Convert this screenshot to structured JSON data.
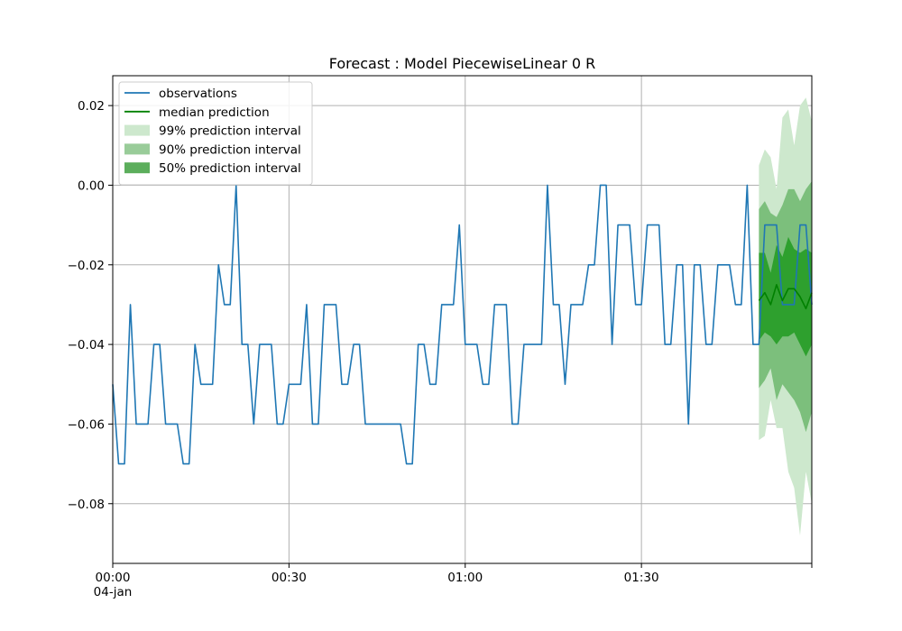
{
  "chart_data": {
    "type": "line",
    "title": "Forecast : Model PiecewiseLinear 0 R",
    "xlabel": "",
    "ylabel": "",
    "x_unit": "minutes",
    "xlim": [
      0,
      119
    ],
    "ylim": [
      -0.095,
      0.0275
    ],
    "grid": true,
    "legend_position": "top-left",
    "x_ticks": [
      {
        "value": 0,
        "label": "00:00",
        "sublabel": "04-jan"
      },
      {
        "value": 30,
        "label": "00:30",
        "sublabel": ""
      },
      {
        "value": 60,
        "label": "01:00",
        "sublabel": ""
      },
      {
        "value": 90,
        "label": "01:30",
        "sublabel": ""
      },
      {
        "value": 119,
        "label": "",
        "sublabel": ""
      }
    ],
    "y_ticks": [
      {
        "value": 0.02,
        "label": "0.02"
      },
      {
        "value": 0.0,
        "label": "0.00"
      },
      {
        "value": -0.02,
        "label": "−0.02"
      },
      {
        "value": -0.04,
        "label": "−0.04"
      },
      {
        "value": -0.06,
        "label": "−0.06"
      },
      {
        "value": -0.08,
        "label": "−0.08"
      }
    ],
    "colors": {
      "observations": "#1f77b4",
      "median": "#008000",
      "band99": "#cde8cd",
      "band90": "#7cbf7c",
      "band50": "#2ea02e",
      "grid": "#b0b0b0"
    },
    "legend": [
      {
        "label": "observations",
        "kind": "line",
        "color": "#1f77b4"
      },
      {
        "label": "median prediction",
        "kind": "line",
        "color": "#008000"
      },
      {
        "label": "99% prediction interval",
        "kind": "patch",
        "color": "#cde8cd"
      },
      {
        "label": "90% prediction interval",
        "kind": "patch",
        "color": "#99cc99"
      },
      {
        "label": "50% prediction interval",
        "kind": "patch",
        "color": "#5cae5c"
      }
    ],
    "series": [
      {
        "name": "observations",
        "x": [
          0,
          1,
          2,
          3,
          4,
          5,
          6,
          7,
          8,
          9,
          10,
          11,
          12,
          13,
          14,
          15,
          16,
          17,
          18,
          19,
          20,
          21,
          22,
          23,
          24,
          25,
          26,
          27,
          28,
          29,
          30,
          31,
          32,
          33,
          34,
          35,
          36,
          37,
          38,
          39,
          40,
          41,
          42,
          43,
          44,
          45,
          46,
          47,
          48,
          49,
          50,
          51,
          52,
          53,
          54,
          55,
          56,
          57,
          58,
          59,
          60,
          61,
          62,
          63,
          64,
          65,
          66,
          67,
          68,
          69,
          70,
          71,
          72,
          73,
          74,
          75,
          76,
          77,
          78,
          79,
          80,
          81,
          82,
          83,
          84,
          85,
          86,
          87,
          88,
          89,
          90,
          91,
          92,
          93,
          94,
          95,
          96,
          97,
          98,
          99,
          100,
          101,
          102,
          103,
          104,
          105,
          106,
          107,
          108,
          109,
          110,
          111,
          112,
          113,
          114,
          115,
          116,
          117,
          118,
          119
        ],
        "y": [
          -0.05,
          -0.07,
          -0.07,
          -0.03,
          -0.06,
          -0.06,
          -0.06,
          -0.04,
          -0.04,
          -0.06,
          -0.06,
          -0.06,
          -0.07,
          -0.07,
          -0.04,
          -0.05,
          -0.05,
          -0.05,
          -0.02,
          -0.03,
          -0.03,
          0.0,
          -0.04,
          -0.04,
          -0.06,
          -0.04,
          -0.04,
          -0.04,
          -0.06,
          -0.06,
          -0.05,
          -0.05,
          -0.05,
          -0.03,
          -0.06,
          -0.06,
          -0.03,
          -0.03,
          -0.03,
          -0.05,
          -0.05,
          -0.04,
          -0.04,
          -0.06,
          -0.06,
          -0.06,
          -0.06,
          -0.06,
          -0.06,
          -0.06,
          -0.07,
          -0.07,
          -0.04,
          -0.04,
          -0.05,
          -0.05,
          -0.03,
          -0.03,
          -0.03,
          -0.01,
          -0.04,
          -0.04,
          -0.04,
          -0.05,
          -0.05,
          -0.03,
          -0.03,
          -0.03,
          -0.06,
          -0.06,
          -0.04,
          -0.04,
          -0.04,
          -0.04,
          0.0,
          -0.03,
          -0.03,
          -0.05,
          -0.03,
          -0.03,
          -0.03,
          -0.02,
          -0.02,
          0.0,
          0.0,
          -0.04,
          -0.01,
          -0.01,
          -0.01,
          -0.03,
          -0.03,
          -0.01,
          -0.01,
          -0.01,
          -0.04,
          -0.04,
          -0.02,
          -0.02,
          -0.06,
          -0.02,
          -0.02,
          -0.04,
          -0.04,
          -0.02,
          -0.02,
          -0.02,
          -0.03,
          -0.03,
          0.0,
          -0.04,
          -0.04,
          -0.01,
          -0.01,
          -0.01,
          -0.03,
          -0.03,
          -0.03,
          -0.01,
          -0.01,
          -0.03
        ]
      },
      {
        "name": "median prediction",
        "x": [
          110,
          111,
          112,
          113,
          114,
          115,
          116,
          117,
          118,
          119
        ],
        "y": [
          -0.029,
          -0.027,
          -0.03,
          -0.025,
          -0.029,
          -0.026,
          -0.026,
          -0.028,
          -0.031,
          -0.027
        ]
      }
    ],
    "bands": [
      {
        "name": "99% prediction interval",
        "x": [
          110,
          111,
          112,
          113,
          114,
          115,
          116,
          117,
          118,
          119
        ],
        "lower": [
          -0.064,
          -0.063,
          -0.054,
          -0.061,
          -0.061,
          -0.072,
          -0.076,
          -0.088,
          -0.072,
          -0.08
        ],
        "upper": [
          0.005,
          0.009,
          0.007,
          -0.001,
          0.017,
          0.019,
          0.01,
          0.02,
          0.022,
          0.016
        ]
      },
      {
        "name": "90% prediction interval",
        "x": [
          110,
          111,
          112,
          113,
          114,
          115,
          116,
          117,
          118,
          119
        ],
        "lower": [
          -0.051,
          -0.049,
          -0.046,
          -0.054,
          -0.05,
          -0.052,
          -0.054,
          -0.057,
          -0.062,
          -0.057
        ],
        "upper": [
          -0.006,
          -0.004,
          -0.007,
          -0.008,
          -0.005,
          -0.001,
          -0.001,
          -0.004,
          -0.001,
          0.001
        ]
      },
      {
        "name": "50% prediction interval",
        "x": [
          110,
          111,
          112,
          113,
          114,
          115,
          116,
          117,
          118,
          119
        ],
        "lower": [
          -0.039,
          -0.037,
          -0.038,
          -0.04,
          -0.038,
          -0.038,
          -0.037,
          -0.04,
          -0.043,
          -0.04
        ],
        "upper": [
          -0.017,
          -0.017,
          -0.022,
          -0.015,
          -0.018,
          -0.013,
          -0.016,
          -0.017,
          -0.016,
          -0.017
        ]
      }
    ]
  }
}
